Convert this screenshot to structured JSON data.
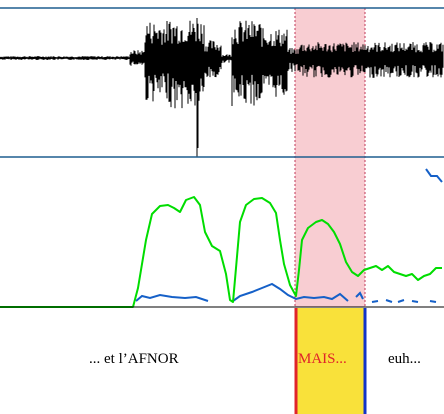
{
  "colors": {
    "selection_fill": "#f8cdd2",
    "selection_border": "#c0395a",
    "axis_line": "#1f5f8f",
    "pitch_curve": "#00dd00",
    "energy_curve": "#1560c8",
    "segment_fill": "#f9e13a",
    "boundary_left": "#e0242a",
    "boundary_right": "#1234c8",
    "text_highlight": "#e0242a",
    "text": "#000000"
  },
  "segments": [
    {
      "text": "... et l’AFNOR",
      "selected": false
    },
    {
      "text": "MAIS...",
      "selected": true
    },
    {
      "text": "euh...",
      "selected": false
    }
  ]
}
